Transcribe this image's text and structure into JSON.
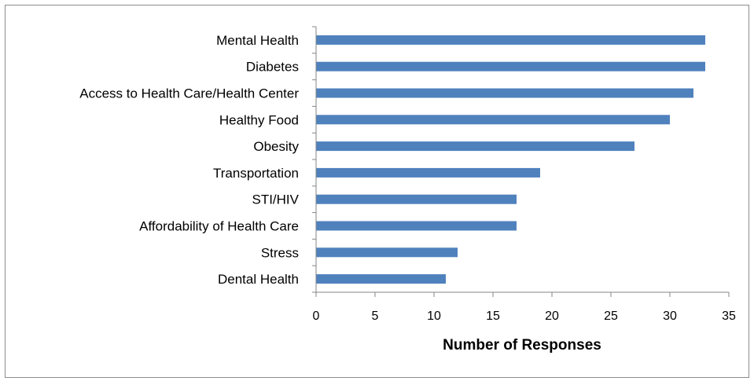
{
  "chart_data": {
    "type": "bar",
    "orientation": "horizontal",
    "categories": [
      "Mental Health",
      "Diabetes",
      "Access to Health Care/Health Center",
      "Healthy Food",
      "Obesity",
      "Transportation",
      "STI/HIV",
      "Affordability of Health Care",
      "Stress",
      "Dental Health"
    ],
    "values": [
      33,
      33,
      32,
      30,
      27,
      19,
      17,
      17,
      12,
      11
    ],
    "title": "",
    "xlabel": "Number of Responses",
    "ylabel": "",
    "xlim": [
      0,
      35
    ],
    "xticks": [
      0,
      5,
      10,
      15,
      20,
      25,
      30,
      35
    ],
    "grid": false,
    "legend": "none",
    "bar_color": "#4f81bd"
  }
}
